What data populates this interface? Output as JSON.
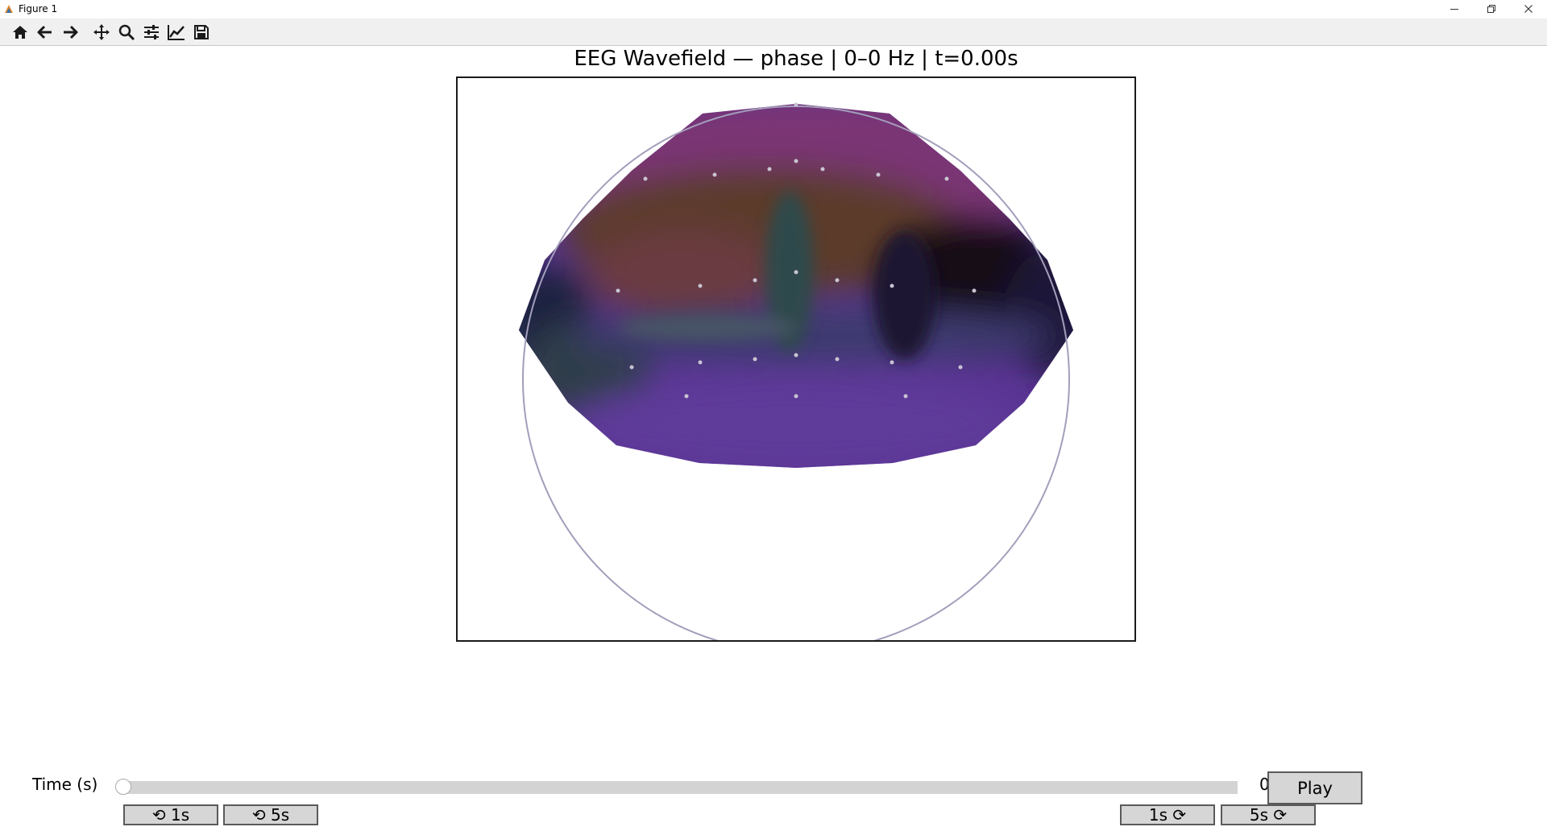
{
  "window": {
    "title": "Figure 1"
  },
  "toolbar": {
    "tools": [
      "home-icon",
      "back-arrow-icon",
      "forward-arrow-icon",
      "pan-icon",
      "zoom-icon",
      "subplots-icon",
      "edit-axes-icon",
      "save-icon"
    ]
  },
  "figure": {
    "title": "EEG Wavefield — phase | 0–0 Hz | t=0.00s",
    "colors": {
      "head_outline": "#a39ebb",
      "electrode": "#c9c4d2",
      "axes_border": "#1a1a1a",
      "purple": "#5a3494",
      "brown": "#5b3a2c",
      "dark": "#150a14",
      "teal": "#2d4a4c",
      "magenta": "#7a3574"
    }
  },
  "controls": {
    "slider_label": "Time (s)",
    "slider_value": "0",
    "slider_position": 0,
    "play_label": "Play",
    "back_1s_label": "⟲ 1s",
    "back_5s_label": "⟲ 5s",
    "fwd_1s_label": "1s ⟳",
    "fwd_5s_label": "5s ⟳",
    "track_color": "#d3d3d3",
    "button_color": "#d6d6d6"
  }
}
